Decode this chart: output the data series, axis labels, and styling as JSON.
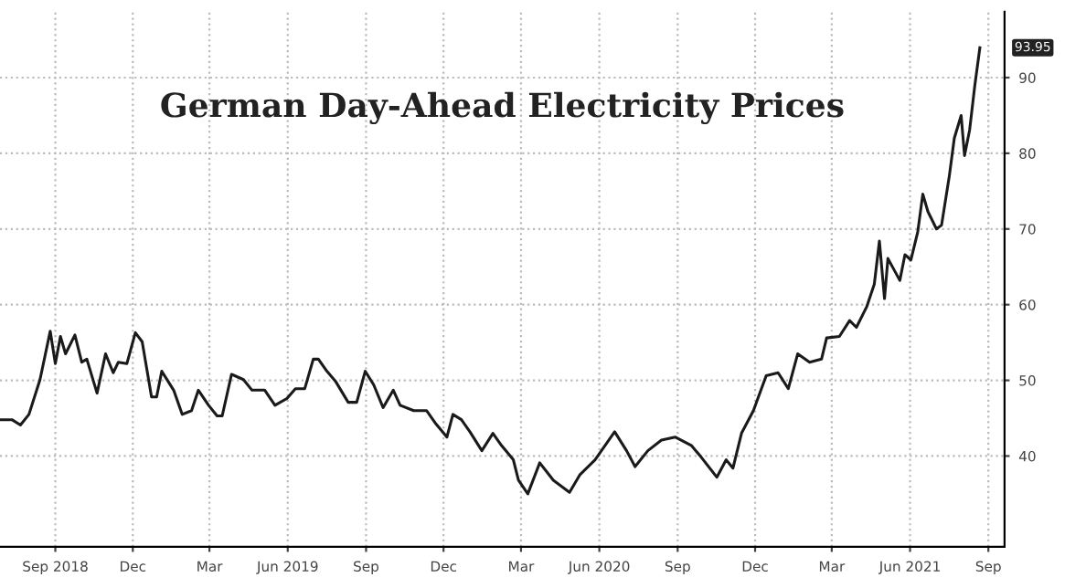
{
  "chart_data": {
    "type": "line",
    "title": "German Day-Ahead Electricity Prices",
    "x": [
      "2018-06-28",
      "2018-07-12",
      "2018-07-22",
      "2018-08-01",
      "2018-08-14",
      "2018-08-26",
      "2018-09-01",
      "2018-09-07",
      "2018-09-13",
      "2018-09-24",
      "2018-10-02",
      "2018-10-08",
      "2018-10-20",
      "2018-10-30",
      "2018-11-08",
      "2018-11-14",
      "2018-11-24",
      "2018-12-04",
      "2018-12-12",
      "2018-12-23",
      "2018-12-29",
      "2019-01-04",
      "2019-01-18",
      "2019-01-28",
      "2019-02-08",
      "2019-02-16",
      "2019-02-28",
      "2019-03-10",
      "2019-03-16",
      "2019-03-27",
      "2019-04-10",
      "2019-04-20",
      "2019-05-05",
      "2019-05-17",
      "2019-05-31",
      "2019-06-10",
      "2019-06-21",
      "2019-07-01",
      "2019-07-07",
      "2019-07-17",
      "2019-07-27",
      "2019-08-11",
      "2019-08-21",
      "2019-08-31",
      "2019-09-10",
      "2019-09-21",
      "2019-10-03",
      "2019-10-11",
      "2019-10-27",
      "2019-11-11",
      "2019-11-21",
      "2019-12-05",
      "2019-12-12",
      "2019-12-22",
      "2020-01-01",
      "2020-01-15",
      "2020-01-28",
      "2020-02-07",
      "2020-02-21",
      "2020-02-27",
      "2020-03-09",
      "2020-03-23",
      "2020-04-08",
      "2020-04-27",
      "2020-05-09",
      "2020-05-27",
      "2020-06-19",
      "2020-07-03",
      "2020-07-13",
      "2020-07-28",
      "2020-08-13",
      "2020-08-29",
      "2020-09-17",
      "2020-09-29",
      "2020-10-17",
      "2020-10-28",
      "2020-11-05",
      "2020-11-15",
      "2020-11-29",
      "2020-12-14",
      "2020-12-28",
      "2021-01-09",
      "2021-01-20",
      "2021-02-03",
      "2021-02-17",
      "2021-02-23",
      "2021-03-10",
      "2021-03-22",
      "2021-03-30",
      "2021-04-11",
      "2021-04-20",
      "2021-04-26",
      "2021-05-02",
      "2021-05-06",
      "2021-05-20",
      "2021-05-26",
      "2021-06-02",
      "2021-06-10",
      "2021-06-16",
      "2021-06-22",
      "2021-07-02",
      "2021-07-08",
      "2021-07-17",
      "2021-07-23",
      "2021-07-31",
      "2021-08-04",
      "2021-08-10",
      "2021-08-16",
      "2021-08-22"
    ],
    "series": [
      {
        "color": "#1a1a1a",
        "values": [
          44.8,
          44.8,
          44.1,
          45.5,
          50.1,
          56.5,
          52.2,
          55.8,
          53.5,
          56,
          52.4,
          52.8,
          48.3,
          53.5,
          51,
          52.4,
          52.2,
          56.3,
          55.1,
          47.8,
          47.8,
          51.2,
          48.7,
          45.5,
          46,
          48.7,
          46.7,
          45.3,
          45.3,
          50.8,
          50.1,
          48.7,
          48.7,
          46.7,
          47.6,
          48.9,
          48.9,
          52.8,
          52.8,
          51.2,
          49.9,
          47.1,
          47.1,
          51.2,
          49.4,
          46.4,
          48.7,
          46.7,
          46,
          46,
          44.4,
          42.5,
          45.5,
          44.8,
          43.2,
          40.7,
          43,
          41.4,
          39.5,
          36.8,
          35,
          39.1,
          36.8,
          35.2,
          37.5,
          39.5,
          43.2,
          40.7,
          38.6,
          40.7,
          42.1,
          42.5,
          41.4,
          39.8,
          37.2,
          39.5,
          38.4,
          43,
          46,
          50.6,
          51,
          48.9,
          53.5,
          52.4,
          52.8,
          55.6,
          55.8,
          57.9,
          57,
          59.7,
          62.7,
          68.4,
          60.8,
          66.1,
          63.2,
          66.6,
          65.9,
          69.6,
          74.6,
          72.3,
          70,
          70.5,
          76.9,
          82,
          85,
          79.7,
          83.1,
          88.9,
          93.95
        ]
      }
    ],
    "xlim": [
      "2018-06-28",
      "2021-09-20"
    ],
    "xticks": [
      {
        "value": "2018-09-01",
        "label": "Sep 2018"
      },
      {
        "value": "2018-12-01",
        "label": "Dec"
      },
      {
        "value": "2019-03-01",
        "label": "Mar"
      },
      {
        "value": "2019-06-01",
        "label": "Jun 2019"
      },
      {
        "value": "2019-09-01",
        "label": "Sep"
      },
      {
        "value": "2019-12-01",
        "label": "Dec"
      },
      {
        "value": "2020-03-01",
        "label": "Mar"
      },
      {
        "value": "2020-06-01",
        "label": "Jun 2020"
      },
      {
        "value": "2020-09-01",
        "label": "Sep"
      },
      {
        "value": "2020-12-01",
        "label": "Dec"
      },
      {
        "value": "2021-03-01",
        "label": "Mar"
      },
      {
        "value": "2021-06-01",
        "label": "Jun 2021"
      },
      {
        "value": "2021-09-01",
        "label": "Sep"
      }
    ],
    "ylim": [
      28,
      98.7
    ],
    "yticks": [
      40,
      50,
      60,
      70,
      80,
      90
    ],
    "grid": true,
    "legend": false,
    "line_style": "solid",
    "annotations": [
      {
        "text": "93.95",
        "x": "2021-08-22",
        "y": 93.95
      }
    ]
  }
}
